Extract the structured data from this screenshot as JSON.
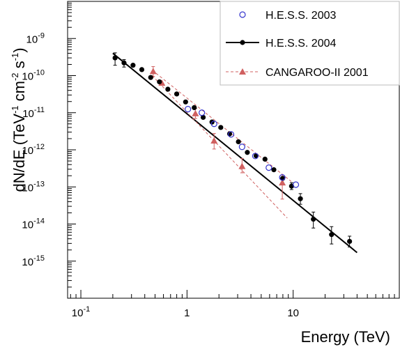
{
  "chart_data": {
    "type": "scatter",
    "title": "",
    "xlabel": "Energy (TeV)",
    "ylabel": "dN/dE (TeV",
    "ylabel_sup1": "-1",
    "ylabel_mid": " cm",
    "ylabel_sup2": "-2",
    "ylabel_end": " s",
    "ylabel_sup3": "-1",
    "ylabel_close": ")",
    "xscale": "log",
    "yscale": "log",
    "xlim": [
      0.075,
      100
    ],
    "ylim": [
      1e-16,
      1e-08
    ],
    "grid": false,
    "legend_placement": "top-right",
    "x_ticks": [
      {
        "value": 0.1,
        "base": "10",
        "exp": "-1"
      },
      {
        "value": 1,
        "base": "1",
        "exp": ""
      },
      {
        "value": 10,
        "base": "10",
        "exp": ""
      }
    ],
    "y_ticks": [
      {
        "value": 1e-09,
        "base": "10",
        "exp": "-9"
      },
      {
        "value": 1e-10,
        "base": "10",
        "exp": "-10"
      },
      {
        "value": 1e-11,
        "base": "10",
        "exp": "-11"
      },
      {
        "value": 1e-12,
        "base": "10",
        "exp": "-12"
      },
      {
        "value": 1e-13,
        "base": "10",
        "exp": "-13"
      },
      {
        "value": 1e-14,
        "base": "10",
        "exp": "-14"
      },
      {
        "value": 1e-15,
        "base": "10",
        "exp": "-15"
      }
    ],
    "series": [
      {
        "name": "H.E.S.S. 2003",
        "marker": "open-circle",
        "color": "#3333cc",
        "points": [
          {
            "x": 1.02,
            "y": 1.25e-11
          },
          {
            "x": 1.38,
            "y": 1e-11
          },
          {
            "x": 1.8,
            "y": 5e-12
          },
          {
            "x": 2.6,
            "y": 2.6e-12
          },
          {
            "x": 3.3,
            "y": 1.2e-12
          },
          {
            "x": 4.4,
            "y": 6.8e-13
          },
          {
            "x": 5.9,
            "y": 3.3e-13
          },
          {
            "x": 7.9,
            "y": 1.8e-13
          },
          {
            "x": 10.6,
            "y": 1.15e-13
          }
        ]
      },
      {
        "name": "H.E.S.S. 2004",
        "marker": "filled-circle",
        "color": "#000000",
        "points": [
          {
            "x": 0.21,
            "y": 3e-10,
            "ylo": 1.9e-10,
            "yhi": 4.1e-10
          },
          {
            "x": 0.255,
            "y": 2.2e-10,
            "ylo": 1.7e-10,
            "yhi": 2.7e-10
          },
          {
            "x": 0.31,
            "y": 1.9e-10
          },
          {
            "x": 0.375,
            "y": 1.45e-10
          },
          {
            "x": 0.455,
            "y": 8.9e-11
          },
          {
            "x": 0.55,
            "y": 6.8e-11
          },
          {
            "x": 0.66,
            "y": 4.3e-11
          },
          {
            "x": 0.8,
            "y": 3.2e-11
          },
          {
            "x": 0.97,
            "y": 1.95e-11
          },
          {
            "x": 1.17,
            "y": 1.37e-11
          },
          {
            "x": 1.42,
            "y": 7.5e-12
          },
          {
            "x": 1.72,
            "y": 5.6e-12
          },
          {
            "x": 2.08,
            "y": 4e-12
          },
          {
            "x": 2.52,
            "y": 2.7e-12
          },
          {
            "x": 3.05,
            "y": 1.65e-12
          },
          {
            "x": 3.7,
            "y": 8.5e-13
          },
          {
            "x": 4.48,
            "y": 6.9e-13
          },
          {
            "x": 5.43,
            "y": 5.6e-13
          },
          {
            "x": 6.58,
            "y": 2.9e-13
          },
          {
            "x": 7.97,
            "y": 1.7e-13
          },
          {
            "x": 9.66,
            "y": 1.05e-13,
            "ylo": 8.5e-14,
            "yhi": 1.3e-13
          },
          {
            "x": 11.7,
            "y": 4.8e-14,
            "ylo": 3.4e-14,
            "yhi": 6.6e-14
          },
          {
            "x": 15.5,
            "y": 1.35e-14,
            "ylo": 7.8e-15,
            "yhi": 2.1e-14
          },
          {
            "x": 23.0,
            "y": 5.2e-15,
            "ylo": 2.9e-15,
            "yhi": 8.5e-15
          },
          {
            "x": 34.0,
            "y": 3.4e-15,
            "ylo": 2.4e-15,
            "yhi": 4.7e-15
          }
        ],
        "fit_line": [
          {
            "x": 0.2,
            "y": 4e-10
          },
          {
            "x": 40.0,
            "y": 1.7e-15
          }
        ]
      },
      {
        "name": "CANGAROO-II 2001",
        "marker": "filled-triangle",
        "color": "#d06060",
        "points": [
          {
            "x": 0.48,
            "y": 1.3e-10,
            "ylo": 9.5e-11,
            "yhi": 1.75e-10
          },
          {
            "x": 0.58,
            "y": 6.3e-11
          },
          {
            "x": 1.2,
            "y": 9.5e-12,
            "ylo": 7e-12,
            "yhi": 1.3e-11
          },
          {
            "x": 1.8,
            "y": 1.75e-12,
            "ylo": 1.05e-12,
            "yhi": 2.75e-12
          },
          {
            "x": 3.3,
            "y": 3.6e-13,
            "ylo": 2.4e-13,
            "yhi": 5.8e-13
          },
          {
            "x": 7.9,
            "y": 1.3e-13,
            "ylo": 4.7e-14,
            "yhi": 2.1e-13
          }
        ],
        "fit_band": [
          [
            {
              "x": 0.47,
              "y": 1.4e-10
            },
            {
              "x": 9.6,
              "y": 1.4e-13
            }
          ],
          [
            {
              "x": 0.47,
              "y": 1e-10
            },
            {
              "x": 8.8,
              "y": 1.45e-14
            }
          ]
        ]
      }
    ]
  }
}
